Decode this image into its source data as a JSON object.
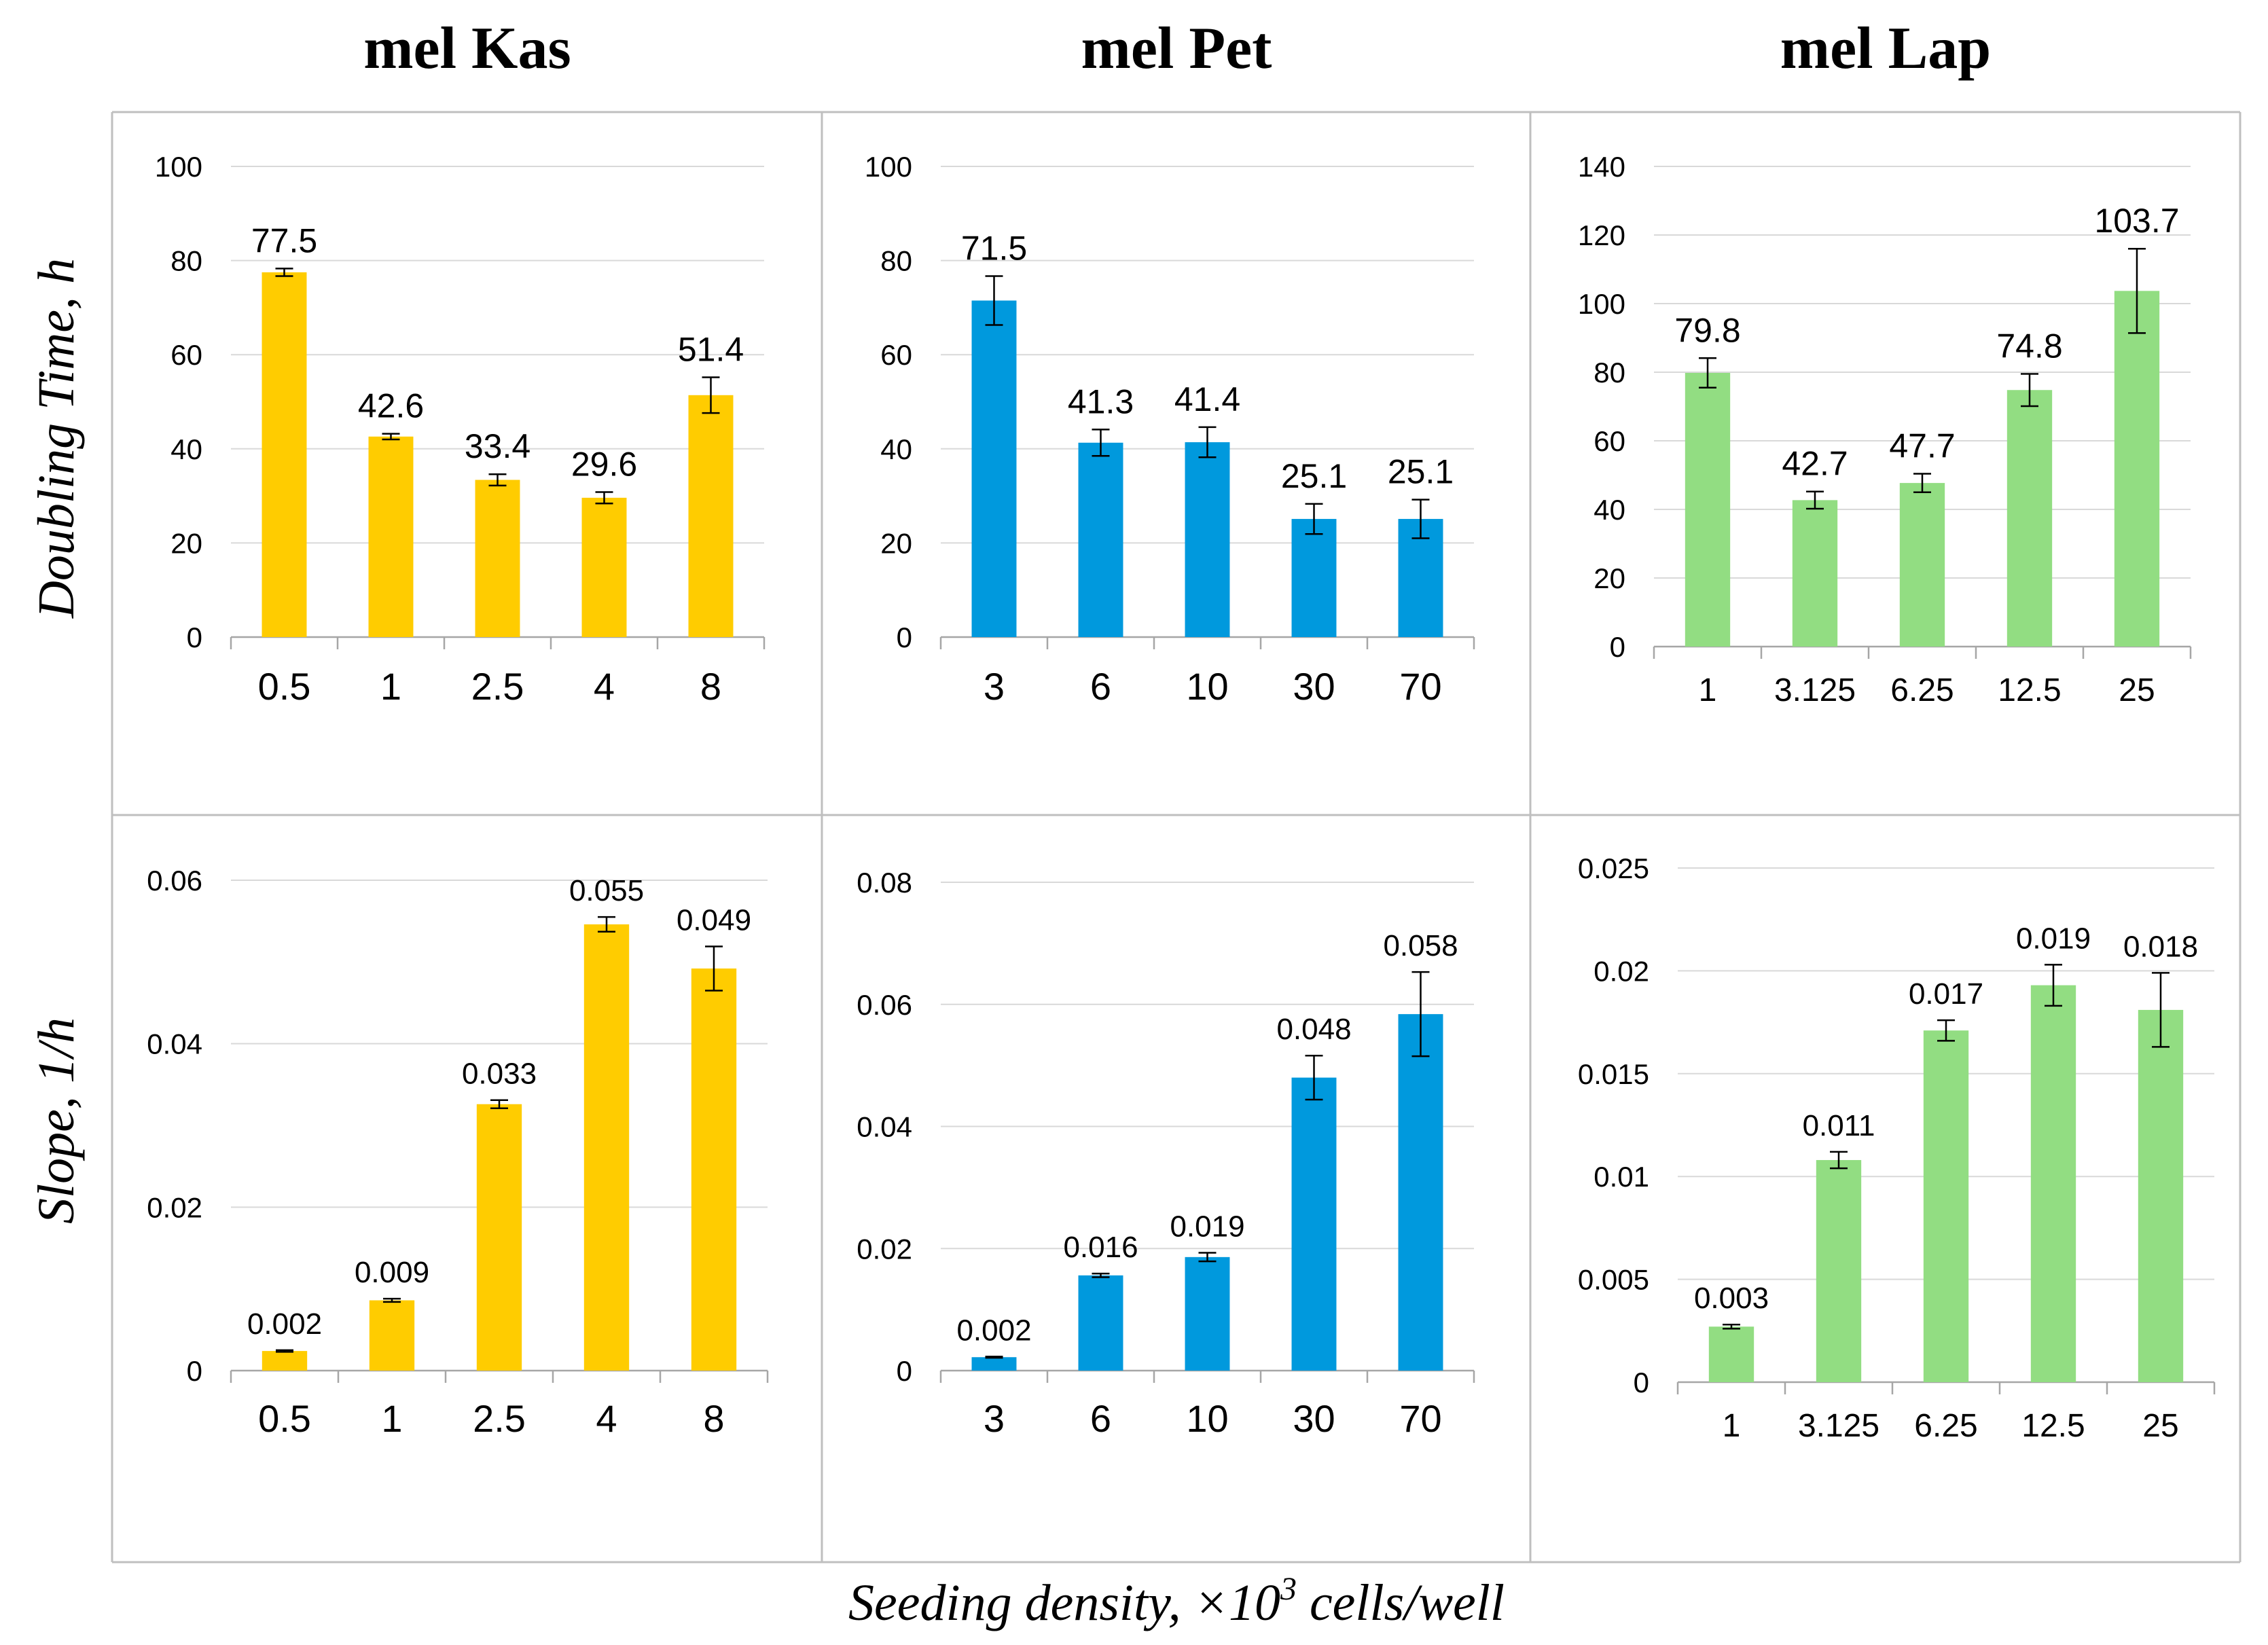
{
  "figure": {
    "column_titles": [
      "mel Kas",
      "mel Pet",
      "mel Lap"
    ],
    "row_titles": [
      "Doubling Time, h",
      "Slope, 1/h"
    ],
    "xlabel": "Seeding density, ×10",
    "xlabel_sup": "3",
    "xlabel_tail": " cells/well"
  },
  "colors": {
    "kas": "#FFCC00",
    "pet": "#0099DD",
    "lap": "#92DD82",
    "grid": "#D9D9D9",
    "border": "#BFBFBF"
  },
  "chart_data": [
    {
      "type": "bar",
      "panel": "mel Kas / doubling time",
      "color": "kas",
      "categories": [
        "0.5",
        "1",
        "2.5",
        "4",
        "8"
      ],
      "values": [
        77.5,
        42.6,
        33.4,
        29.6,
        51.4
      ],
      "errors": [
        0.8,
        0.6,
        1.2,
        1.2,
        3.8
      ],
      "data_labels": [
        "77.5",
        "42.6",
        "33.4",
        "29.6",
        "51.4"
      ],
      "ylim": [
        0,
        100
      ],
      "yticks": [
        "0",
        "20",
        "40",
        "60",
        "80",
        "100"
      ],
      "ylabel": "Doubling Time, h",
      "grid": true
    },
    {
      "type": "bar",
      "panel": "mel Pet / doubling time",
      "color": "pet",
      "categories": [
        "3",
        "6",
        "10",
        "30",
        "70"
      ],
      "values": [
        71.5,
        41.3,
        41.4,
        25.1,
        25.1
      ],
      "errors": [
        5.2,
        2.8,
        3.2,
        3.2,
        4.1
      ],
      "data_labels": [
        "71.5",
        "41.3",
        "41.4",
        "25.1",
        "25.1"
      ],
      "ylim": [
        0,
        100
      ],
      "yticks": [
        "0",
        "20",
        "40",
        "60",
        "80",
        "100"
      ],
      "ylabel": "",
      "grid": true
    },
    {
      "type": "bar",
      "panel": "mel Lap / doubling time",
      "color": "lap",
      "categories": [
        "1",
        "3.125",
        "6.25",
        "12.5",
        "25"
      ],
      "values": [
        79.8,
        42.7,
        47.7,
        74.8,
        103.7
      ],
      "errors": [
        4.3,
        2.5,
        2.7,
        4.7,
        12.3
      ],
      "data_labels": [
        "79.8",
        "42.7",
        "47.7",
        "74.8",
        "103.7"
      ],
      "ylim": [
        0,
        140
      ],
      "yticks": [
        "0",
        "20",
        "40",
        "60",
        "80",
        "100",
        "120",
        "140"
      ],
      "ylabel": "",
      "grid": true
    },
    {
      "type": "bar",
      "panel": "mel Kas / slope",
      "color": "kas",
      "categories": [
        "0.5",
        "1",
        "2.5",
        "4",
        "8"
      ],
      "values": [
        0.0024,
        0.0086,
        0.0326,
        0.0546,
        0.0492
      ],
      "errors": [
        0.0001,
        0.0002,
        0.0005,
        0.0009,
        0.0027
      ],
      "data_labels": [
        "0.002",
        "0.009",
        "0.033",
        "0.055",
        "0.049"
      ],
      "ylim": [
        0,
        0.06
      ],
      "yticks": [
        "0",
        "0.02",
        "0.04",
        "0.06"
      ],
      "ylabel": "Slope, 1/h",
      "grid": true
    },
    {
      "type": "bar",
      "panel": "mel Pet / slope",
      "color": "pet",
      "categories": [
        "3",
        "6",
        "10",
        "30",
        "70"
      ],
      "values": [
        0.0022,
        0.0156,
        0.0186,
        0.048,
        0.0584
      ],
      "errors": [
        0.0001,
        0.0003,
        0.0007,
        0.0036,
        0.0069
      ],
      "data_labels": [
        "0.002",
        "0.016",
        "0.019",
        "0.048",
        "0.058"
      ],
      "ylim": [
        0,
        0.08
      ],
      "yticks": [
        "0",
        "0.02",
        "0.04",
        "0.06",
        "0.08"
      ],
      "ylabel": "",
      "grid": true
    },
    {
      "type": "bar",
      "panel": "mel Lap / slope",
      "color": "lap",
      "categories": [
        "1",
        "3.125",
        "6.25",
        "12.5",
        "25"
      ],
      "values": [
        0.0027,
        0.0108,
        0.0171,
        0.0193,
        0.0181
      ],
      "errors": [
        0.0001,
        0.0004,
        0.0005,
        0.001,
        0.0018
      ],
      "data_labels": [
        "0.003",
        "0.011",
        "0.017",
        "0.019",
        "0.018"
      ],
      "ylim": [
        0,
        0.025
      ],
      "yticks": [
        "0",
        "0.005",
        "0.01",
        "0.015",
        "0.02",
        "0.025"
      ],
      "ylabel": "",
      "grid": true
    }
  ]
}
